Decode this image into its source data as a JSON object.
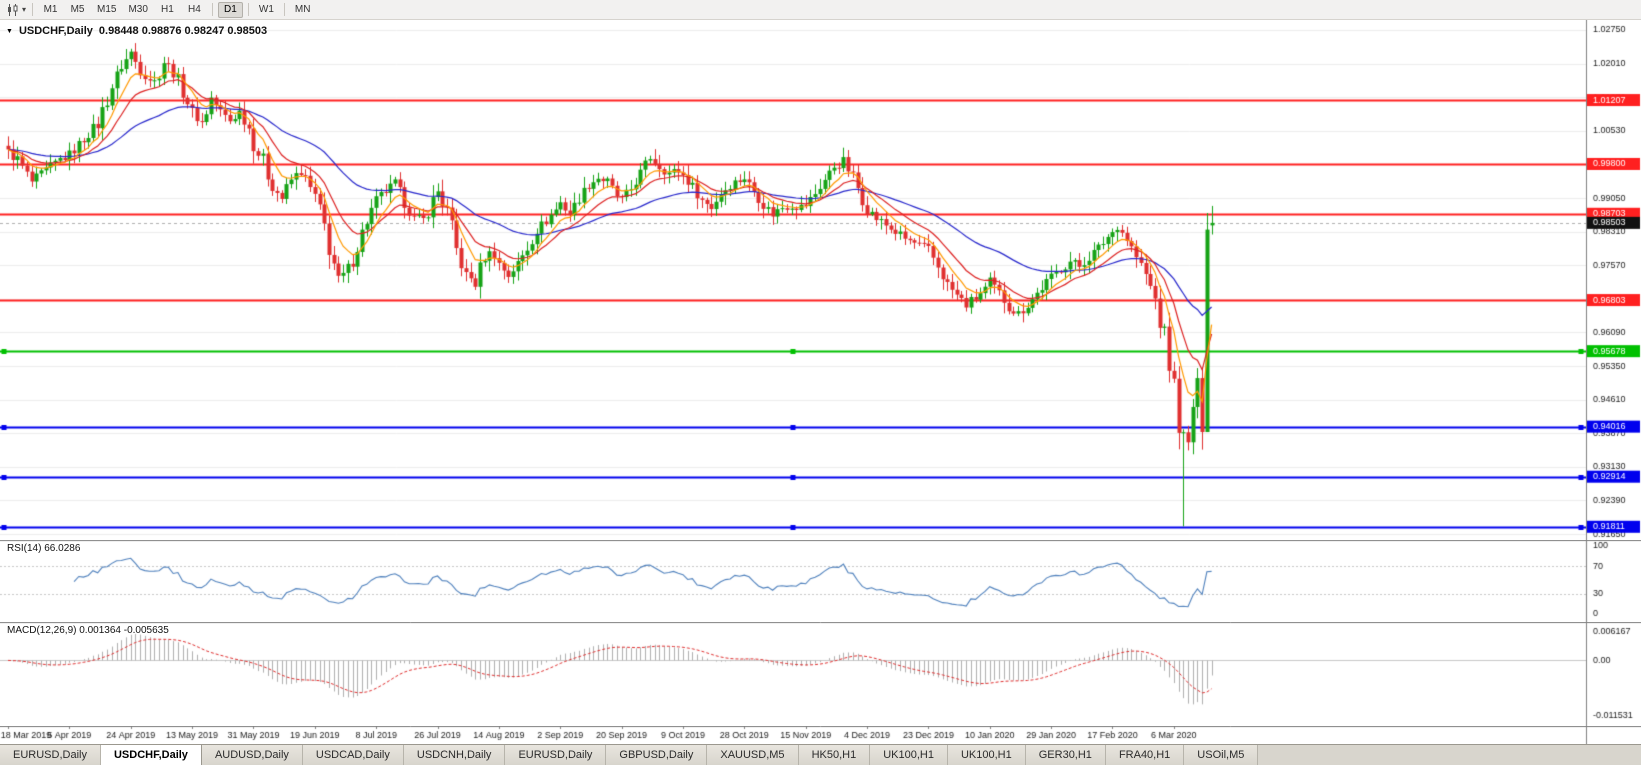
{
  "toolbar": {
    "timeframes": [
      {
        "label": "M1",
        "active": false
      },
      {
        "label": "M5",
        "active": false
      },
      {
        "label": "M15",
        "active": false
      },
      {
        "label": "M30",
        "active": false
      },
      {
        "label": "H1",
        "active": false
      },
      {
        "label": "H4",
        "active": false
      },
      {
        "label": "D1",
        "active": true
      },
      {
        "label": "W1",
        "active": false
      },
      {
        "label": "MN",
        "active": false
      }
    ]
  },
  "chart": {
    "symbol": "USDCHF,Daily",
    "ohlc_text": "0.98448 0.98876 0.98247 0.98503"
  },
  "indicators": {
    "rsi_label": "RSI(14) 66.0286",
    "macd_label": "MACD(12,26,9) 0.001364 -0.005635"
  },
  "tabs": [
    {
      "label": "EURUSD,Daily",
      "active": false
    },
    {
      "label": "USDCHF,Daily",
      "active": true
    },
    {
      "label": "AUDUSD,Daily",
      "active": false
    },
    {
      "label": "USDCAD,Daily",
      "active": false
    },
    {
      "label": "USDCNH,Daily",
      "active": false
    },
    {
      "label": "EURUSD,Daily",
      "active": false
    },
    {
      "label": "GBPUSD,Daily",
      "active": false
    },
    {
      "label": "XAUUSD,M5",
      "active": false
    },
    {
      "label": "HK50,H1",
      "active": false
    },
    {
      "label": "UK100,H1",
      "active": false
    },
    {
      "label": "UK100,H1",
      "active": false
    },
    {
      "label": "GER30,H1",
      "active": false
    },
    {
      "label": "FRA40,H1",
      "active": false
    },
    {
      "label": "USOil,M5",
      "active": false
    }
  ],
  "chart_data": {
    "type": "candlestick",
    "symbol": "USDCHF",
    "timeframe": "Daily",
    "last_candle": {
      "open": 0.98448,
      "high": 0.98876,
      "low": 0.98247,
      "close": 0.98503
    },
    "current_price": 0.98503,
    "price_max": 1.0297,
    "price_min": 0.9152,
    "y_ticks": [
      1.0275,
      1.0201,
      1.0127,
      1.0053,
      0.9979,
      0.9905,
      0.9831,
      0.9757,
      0.9683,
      0.9609,
      0.9535,
      0.9461,
      0.9387,
      0.9313,
      0.9239,
      0.9165
    ],
    "x_labels": [
      "18 Mar 2019",
      "5 Apr 2019",
      "24 Apr 2019",
      "13 May 2019",
      "31 May 2019",
      "19 Jun 2019",
      "8 Jul 2019",
      "26 Jul 2019",
      "14 Aug 2019",
      "2 Sep 2019",
      "20 Sep 2019",
      "9 Oct 2019",
      "28 Oct 2019",
      "15 Nov 2019",
      "4 Dec 2019",
      "23 Dec 2019",
      "10 Jan 2020",
      "29 Jan 2020",
      "17 Feb 2020",
      "6 Mar 2020"
    ],
    "label_every": 13,
    "candle_count": 256,
    "candle_step": 4.72,
    "hlines": [
      {
        "price": 1.01207,
        "color": "#ff2020",
        "width": 2,
        "handles": false
      },
      {
        "price": 0.998,
        "color": "#ff2020",
        "width": 2,
        "handles": false
      },
      {
        "price": 0.98703,
        "color": "#ff2020",
        "width": 2,
        "handles": false
      },
      {
        "price": 0.96803,
        "color": "#ff2020",
        "width": 2,
        "handles": false
      },
      {
        "price": 0.95678,
        "color": "#00c000",
        "width": 2,
        "handles": true
      },
      {
        "price": 0.94016,
        "color": "#0000ee",
        "width": 2,
        "handles": true
      },
      {
        "price": 0.92914,
        "color": "#0000ee",
        "width": 2,
        "handles": true
      },
      {
        "price": 0.91811,
        "color": "#0000ee",
        "width": 2,
        "handles": true
      }
    ],
    "colors": {
      "up": "#16a316",
      "down": "#e03030",
      "grid": "#ededed",
      "axis_border": "#808080",
      "current_dash": "#b0b0b0"
    },
    "ma": [
      {
        "period": 40,
        "color": "#2828cc"
      },
      {
        "period": 14,
        "color": "#dd2222"
      },
      {
        "period": 7,
        "color": "#ff9900"
      }
    ],
    "rsi": {
      "period": 14,
      "value": 66.0286,
      "color": "#4f81bd",
      "levels": [
        100,
        70,
        30,
        0
      ],
      "level_lines": [
        70,
        30
      ]
    },
    "macd": {
      "fast": 12,
      "slow": 26,
      "signal_period": 9,
      "value": 0.001364,
      "signal_value": -0.005635,
      "hist_color": "#b0b0b0",
      "signal_color": "#e03030",
      "max": 0.0068,
      "min": -0.0125,
      "axis": [
        {
          "label": "0.006167",
          "value": 0.006167
        },
        {
          "label": "0.00",
          "value": 0
        },
        {
          "label": "-0.011531",
          "value": -0.011531
        }
      ]
    },
    "close_anchors": [
      [
        0,
        1.0005
      ],
      [
        2,
        0.999
      ],
      [
        5,
        0.994
      ],
      [
        8,
        0.9965
      ],
      [
        11,
        0.999
      ],
      [
        13,
        1.0
      ],
      [
        16,
        1.0035
      ],
      [
        19,
        1.007
      ],
      [
        22,
        1.015
      ],
      [
        24,
        1.0195
      ],
      [
        26,
        1.0225
      ],
      [
        28,
        1.0185
      ],
      [
        31,
        1.016
      ],
      [
        33,
        1.0205
      ],
      [
        35,
        1.0185
      ],
      [
        37,
        1.014
      ],
      [
        39,
        1.0095
      ],
      [
        41,
        1.007
      ],
      [
        43,
        1.0125
      ],
      [
        45,
        1.0095
      ],
      [
        47,
        1.0075
      ],
      [
        49,
        1.0095
      ],
      [
        51,
        1.006
      ],
      [
        52,
        1.002
      ],
      [
        54,
        0.9985
      ],
      [
        56,
        0.993
      ],
      [
        58,
        0.9905
      ],
      [
        60,
        0.9945
      ],
      [
        62,
        0.9965
      ],
      [
        65,
        0.9905
      ],
      [
        67,
        0.984
      ],
      [
        69,
        0.976
      ],
      [
        70,
        0.9725
      ],
      [
        72,
        0.9745
      ],
      [
        74,
        0.98
      ],
      [
        76,
        0.9855
      ],
      [
        78,
        0.99
      ],
      [
        80,
        0.992
      ],
      [
        82,
        0.9935
      ],
      [
        84,
        0.9895
      ],
      [
        86,
        0.986
      ],
      [
        88,
        0.9855
      ],
      [
        90,
        0.99
      ],
      [
        91,
        0.992
      ],
      [
        93,
        0.987
      ],
      [
        95,
        0.979
      ],
      [
        97,
        0.9735
      ],
      [
        99,
        0.972
      ],
      [
        101,
        0.9775
      ],
      [
        103,
        0.979
      ],
      [
        104,
        0.976
      ],
      [
        106,
        0.9735
      ],
      [
        108,
        0.976
      ],
      [
        110,
        0.9795
      ],
      [
        112,
        0.9835
      ],
      [
        114,
        0.9855
      ],
      [
        116,
        0.988
      ],
      [
        117,
        0.9895
      ],
      [
        119,
        0.987
      ],
      [
        121,
        0.9905
      ],
      [
        123,
        0.9935
      ],
      [
        125,
        0.995
      ],
      [
        127,
        0.994
      ],
      [
        129,
        0.991
      ],
      [
        130,
        0.99
      ],
      [
        132,
        0.9925
      ],
      [
        134,
        0.996
      ],
      [
        136,
        0.9995
      ],
      [
        138,
        0.9975
      ],
      [
        140,
        0.996
      ],
      [
        142,
        0.9965
      ],
      [
        143,
        0.9955
      ],
      [
        145,
        0.993
      ],
      [
        147,
        0.99
      ],
      [
        149,
        0.9885
      ],
      [
        151,
        0.9915
      ],
      [
        153,
        0.9935
      ],
      [
        155,
        0.9945
      ],
      [
        156,
        0.995
      ],
      [
        158,
        0.992
      ],
      [
        160,
        0.989
      ],
      [
        162,
        0.987
      ],
      [
        164,
        0.9885
      ],
      [
        166,
        0.989
      ],
      [
        168,
        0.9885
      ],
      [
        169,
        0.989
      ],
      [
        171,
        0.9915
      ],
      [
        173,
        0.9945
      ],
      [
        175,
        0.9975
      ],
      [
        177,
        0.9985
      ],
      [
        179,
        0.995
      ],
      [
        181,
        0.9905
      ],
      [
        182,
        0.988
      ],
      [
        184,
        0.986
      ],
      [
        186,
        0.9845
      ],
      [
        188,
        0.983
      ],
      [
        190,
        0.9815
      ],
      [
        192,
        0.9805
      ],
      [
        194,
        0.9795
      ],
      [
        195,
        0.979
      ],
      [
        197,
        0.9755
      ],
      [
        199,
        0.9715
      ],
      [
        201,
        0.969
      ],
      [
        203,
        0.967
      ],
      [
        205,
        0.9685
      ],
      [
        207,
        0.9705
      ],
      [
        208,
        0.972
      ],
      [
        210,
        0.9695
      ],
      [
        212,
        0.9665
      ],
      [
        214,
        0.965
      ],
      [
        216,
        0.967
      ],
      [
        218,
        0.9695
      ],
      [
        220,
        0.972
      ],
      [
        221,
        0.973
      ],
      [
        223,
        0.975
      ],
      [
        225,
        0.9765
      ],
      [
        227,
        0.9755
      ],
      [
        229,
        0.9775
      ],
      [
        231,
        0.9795
      ],
      [
        233,
        0.982
      ],
      [
        234,
        0.983
      ],
      [
        235,
        0.9845
      ],
      [
        237,
        0.9815
      ],
      [
        239,
        0.9775
      ],
      [
        241,
        0.9735
      ],
      [
        243,
        0.968
      ],
      [
        245,
        0.9595
      ],
      [
        246,
        0.955
      ],
      [
        247,
        0.948
      ],
      [
        248,
        0.9415
      ],
      [
        249,
        0.937
      ],
      [
        250,
        0.933
      ],
      [
        251,
        0.945
      ],
      [
        252,
        0.9405
      ],
      [
        253,
        0.956
      ],
      [
        254,
        0.9845
      ],
      [
        255,
        0.98503
      ]
    ],
    "overrides": {
      "249": {
        "low": 0.9182
      },
      "254": {
        "high": 0.9872,
        "low": 0.9535
      },
      "255": {
        "open": 0.98448,
        "high": 0.98876,
        "low": 0.98247,
        "close": 0.98503
      }
    }
  }
}
